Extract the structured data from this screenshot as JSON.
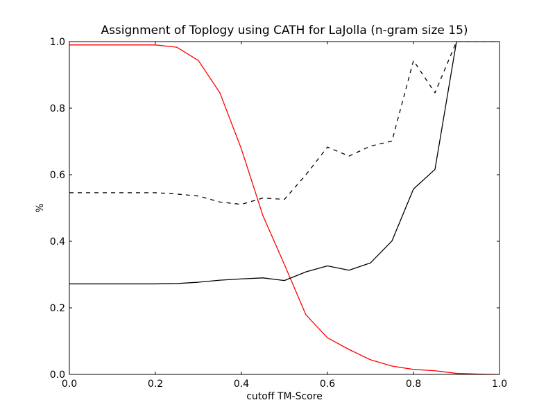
{
  "chart_data": {
    "type": "line",
    "title": "Assignment of Toplogy using CATH for LaJolla (n-gram size 15)",
    "xlabel": "cutoff TM-Score",
    "ylabel": "%",
    "xlim": [
      0.0,
      1.0
    ],
    "ylim": [
      0.0,
      1.0
    ],
    "xticks": [
      "0.0",
      "0.2",
      "0.4",
      "0.6",
      "0.8",
      "1.0"
    ],
    "yticks": [
      "0.0",
      "0.2",
      "0.4",
      "0.6",
      "0.8",
      "1.0"
    ],
    "grid": false,
    "x": [
      0.0,
      0.05,
      0.1,
      0.15,
      0.2,
      0.25,
      0.3,
      0.35,
      0.4,
      0.45,
      0.5,
      0.55,
      0.6,
      0.65,
      0.7,
      0.75,
      0.8,
      0.85,
      0.9,
      0.95,
      1.0
    ],
    "series": [
      {
        "color": "#ff0000",
        "style": "solid",
        "values": [
          0.99,
          0.99,
          0.99,
          0.99,
          0.99,
          0.983,
          0.943,
          0.846,
          0.677,
          0.477,
          0.33,
          0.179,
          0.11,
          0.075,
          0.044,
          0.025,
          0.015,
          0.011,
          0.003,
          0.001,
          0.0
        ]
      },
      {
        "color": "#000000",
        "style": "dashed",
        "values": [
          0.546,
          0.546,
          0.546,
          0.546,
          0.546,
          0.542,
          0.536,
          0.518,
          0.511,
          0.53,
          0.526,
          0.6,
          0.683,
          0.656,
          0.686,
          0.701,
          0.943,
          0.846,
          1.0,
          1.0,
          1.0
        ]
      },
      {
        "color": "#000000",
        "style": "solid",
        "values": [
          0.272,
          0.272,
          0.272,
          0.272,
          0.272,
          0.273,
          0.277,
          0.283,
          0.287,
          0.29,
          0.282,
          0.308,
          0.326,
          0.313,
          0.335,
          0.401,
          0.557,
          0.616,
          1.0,
          1.0,
          1.0
        ]
      }
    ]
  }
}
